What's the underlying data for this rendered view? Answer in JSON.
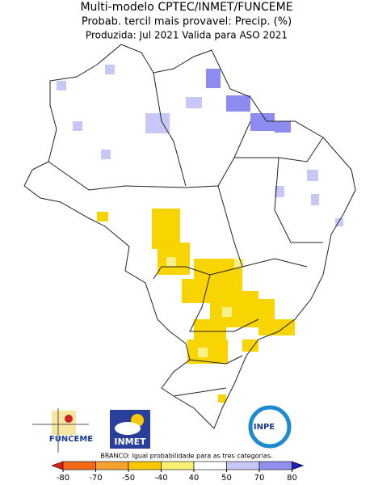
{
  "header": {
    "title": "Multi-modelo CPTEC/INMET/FUNCEME",
    "subtitle": "Probab. tercil mais provavel: Precip. (%)",
    "info": "Produzida: Jul 2021   Valida para ASO 2021"
  },
  "logos": [
    "FUNCEME",
    "INMET",
    "INPE"
  ],
  "legend": {
    "note": "BRANCO: Igual probabilidade para as tres categorias.",
    "ticks": [
      -80,
      -70,
      -50,
      -40,
      40,
      50,
      70,
      80
    ],
    "colors": [
      "#e02010",
      "#f06818",
      "#f8a030",
      "#f8c800",
      "#f8f070",
      "#ffffff",
      "#c8c8f8",
      "#9090f0",
      "#5050e0",
      "#2020b8"
    ]
  }
}
